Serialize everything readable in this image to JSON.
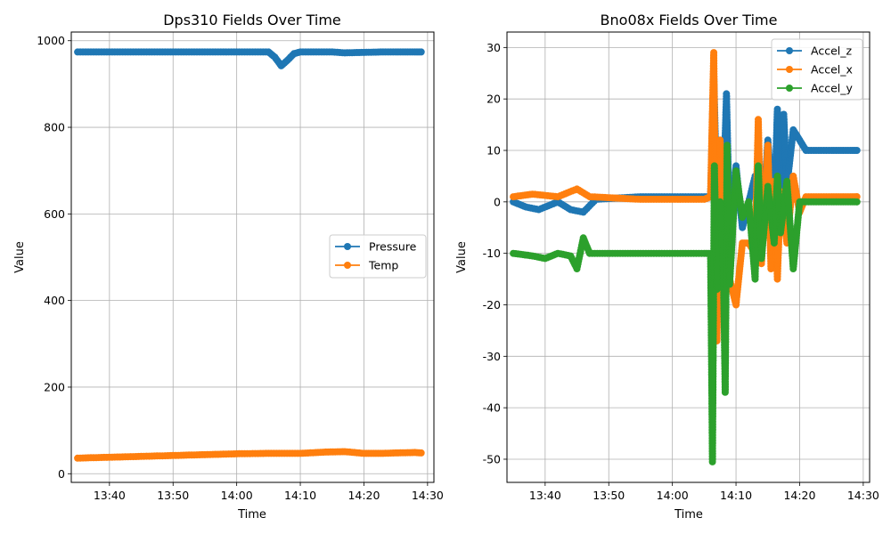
{
  "chart_data": [
    {
      "type": "line",
      "title": "Dps310 Fields Over Time",
      "xlabel": "Time",
      "ylabel": "Value",
      "xlim": [
        "13:34",
        "14:31"
      ],
      "ylim": [
        -20,
        1020
      ],
      "x_ticks": [
        "13:40",
        "13:50",
        "14:00",
        "14:10",
        "14:20",
        "14:30"
      ],
      "y_ticks": [
        0,
        200,
        400,
        600,
        800,
        1000
      ],
      "grid": true,
      "legend": "center-right",
      "series": [
        {
          "name": "Pressure",
          "color": "#1f77b4",
          "points": [
            [
              "13:35",
              974
            ],
            [
              "13:40",
              974
            ],
            [
              "13:45",
              974
            ],
            [
              "13:50",
              974
            ],
            [
              "13:55",
              974
            ],
            [
              "14:00",
              974
            ],
            [
              "14:05",
              974
            ],
            [
              "14:06",
              962
            ],
            [
              "14:07",
              942
            ],
            [
              "14:08",
              955
            ],
            [
              "14:09",
              970
            ],
            [
              "14:10",
              974
            ],
            [
              "14:15",
              974
            ],
            [
              "14:17",
              972
            ],
            [
              "14:20",
              973
            ],
            [
              "14:23",
              974
            ],
            [
              "14:25",
              974
            ],
            [
              "14:28",
              974
            ],
            [
              "14:29",
              974
            ]
          ]
        },
        {
          "name": "Temp",
          "color": "#ff7f0e",
          "points": [
            [
              "13:35",
              36
            ],
            [
              "13:40",
              38
            ],
            [
              "13:45",
              40
            ],
            [
              "13:50",
              42
            ],
            [
              "13:55",
              44
            ],
            [
              "14:00",
              46
            ],
            [
              "14:05",
              47
            ],
            [
              "14:10",
              47
            ],
            [
              "14:14",
              50
            ],
            [
              "14:17",
              51
            ],
            [
              "14:20",
              47
            ],
            [
              "14:23",
              47
            ],
            [
              "14:25",
              48
            ],
            [
              "14:28",
              49
            ],
            [
              "14:29",
              48
            ]
          ]
        }
      ]
    },
    {
      "type": "line",
      "title": "Bno08x Fields Over Time",
      "xlabel": "Time",
      "ylabel": "Value",
      "xlim": [
        "13:34",
        "14:31"
      ],
      "ylim": [
        -54.5,
        33
      ],
      "x_ticks": [
        "13:40",
        "13:50",
        "14:00",
        "14:10",
        "14:20",
        "14:30"
      ],
      "y_ticks": [
        -50,
        -40,
        -30,
        -20,
        -10,
        0,
        10,
        20,
        30
      ],
      "grid": true,
      "legend": "top-right",
      "series": [
        {
          "name": "Accel_z",
          "color": "#1f77b4",
          "points": [
            [
              "13:35",
              0
            ],
            [
              "13:37",
              -1
            ],
            [
              "13:39",
              -1.5
            ],
            [
              "13:42",
              0
            ],
            [
              "13:44",
              -1.5
            ],
            [
              "13:46",
              -2
            ],
            [
              "13:48",
              0.5
            ],
            [
              "13:55",
              1
            ],
            [
              "14:00",
              1
            ],
            [
              "14:05",
              1
            ],
            [
              "14:06",
              1
            ],
            [
              "14:06.5",
              25
            ],
            [
              "14:07",
              -1
            ],
            [
              "14:08",
              0
            ],
            [
              "14:08.5",
              21
            ],
            [
              "14:09",
              -6
            ],
            [
              "14:10",
              7
            ],
            [
              "14:11",
              -5
            ],
            [
              "14:12",
              0
            ],
            [
              "14:13",
              5
            ],
            [
              "14:14",
              -8
            ],
            [
              "14:15",
              12
            ],
            [
              "14:16",
              -3
            ],
            [
              "14:16.5",
              18
            ],
            [
              "14:17",
              -2
            ],
            [
              "14:17.5",
              17
            ],
            [
              "14:18",
              3
            ],
            [
              "14:19",
              14
            ],
            [
              "14:20",
              12
            ],
            [
              "14:21",
              10
            ],
            [
              "14:23",
              10
            ],
            [
              "14:25",
              10
            ],
            [
              "14:28",
              10
            ],
            [
              "14:29",
              10
            ]
          ]
        },
        {
          "name": "Accel_x",
          "color": "#ff7f0e",
          "points": [
            [
              "13:35",
              1
            ],
            [
              "13:38",
              1.5
            ],
            [
              "13:42",
              1
            ],
            [
              "13:45",
              2.5
            ],
            [
              "13:47",
              1
            ],
            [
              "13:55",
              0.5
            ],
            [
              "14:00",
              0.5
            ],
            [
              "14:05",
              0.5
            ],
            [
              "14:06",
              1
            ],
            [
              "14:06.5",
              29
            ],
            [
              "14:07",
              -27
            ],
            [
              "14:07.5",
              12
            ],
            [
              "14:08",
              -5
            ],
            [
              "14:08.5",
              9
            ],
            [
              "14:09",
              -15
            ],
            [
              "14:10",
              -20
            ],
            [
              "14:11",
              -8
            ],
            [
              "14:12",
              -8
            ],
            [
              "14:13",
              -10
            ],
            [
              "14:13.5",
              16
            ],
            [
              "14:14",
              -12
            ],
            [
              "14:15",
              11
            ],
            [
              "14:15.5",
              -13
            ],
            [
              "14:16",
              4
            ],
            [
              "14:16.5",
              -15
            ],
            [
              "14:17",
              2
            ],
            [
              "14:18",
              -8
            ],
            [
              "14:19",
              5
            ],
            [
              "14:20",
              -2
            ],
            [
              "14:21",
              1
            ],
            [
              "14:23",
              1
            ],
            [
              "14:25",
              1
            ],
            [
              "14:28",
              1
            ],
            [
              "14:29",
              1
            ]
          ]
        },
        {
          "name": "Accel_y",
          "color": "#2ca02c",
          "points": [
            [
              "13:35",
              -10
            ],
            [
              "13:38",
              -10.5
            ],
            [
              "13:40",
              -11
            ],
            [
              "13:42",
              -10
            ],
            [
              "13:44",
              -10.5
            ],
            [
              "13:45",
              -13
            ],
            [
              "13:46",
              -7
            ],
            [
              "13:47",
              -10
            ],
            [
              "13:55",
              -10
            ],
            [
              "14:00",
              -10
            ],
            [
              "14:05",
              -10
            ],
            [
              "14:06",
              -10
            ],
            [
              "14:06.3",
              -50.5
            ],
            [
              "14:06.6",
              7
            ],
            [
              "14:07",
              -17
            ],
            [
              "14:07.5",
              0
            ],
            [
              "14:08",
              -12
            ],
            [
              "14:08.3",
              -37
            ],
            [
              "14:08.6",
              11
            ],
            [
              "14:09",
              -16
            ],
            [
              "14:10",
              6
            ],
            [
              "14:11",
              -3
            ],
            [
              "14:12",
              0
            ],
            [
              "14:13",
              -15
            ],
            [
              "14:13.5",
              7
            ],
            [
              "14:14",
              -11
            ],
            [
              "14:15",
              3
            ],
            [
              "14:16",
              -8
            ],
            [
              "14:16.5",
              5
            ],
            [
              "14:17",
              -6
            ],
            [
              "14:18",
              4
            ],
            [
              "14:19",
              -13
            ],
            [
              "14:20",
              0
            ],
            [
              "14:21",
              0
            ],
            [
              "14:23",
              0
            ],
            [
              "14:25",
              0
            ],
            [
              "14:28",
              0
            ],
            [
              "14:29",
              0
            ]
          ]
        }
      ]
    }
  ]
}
